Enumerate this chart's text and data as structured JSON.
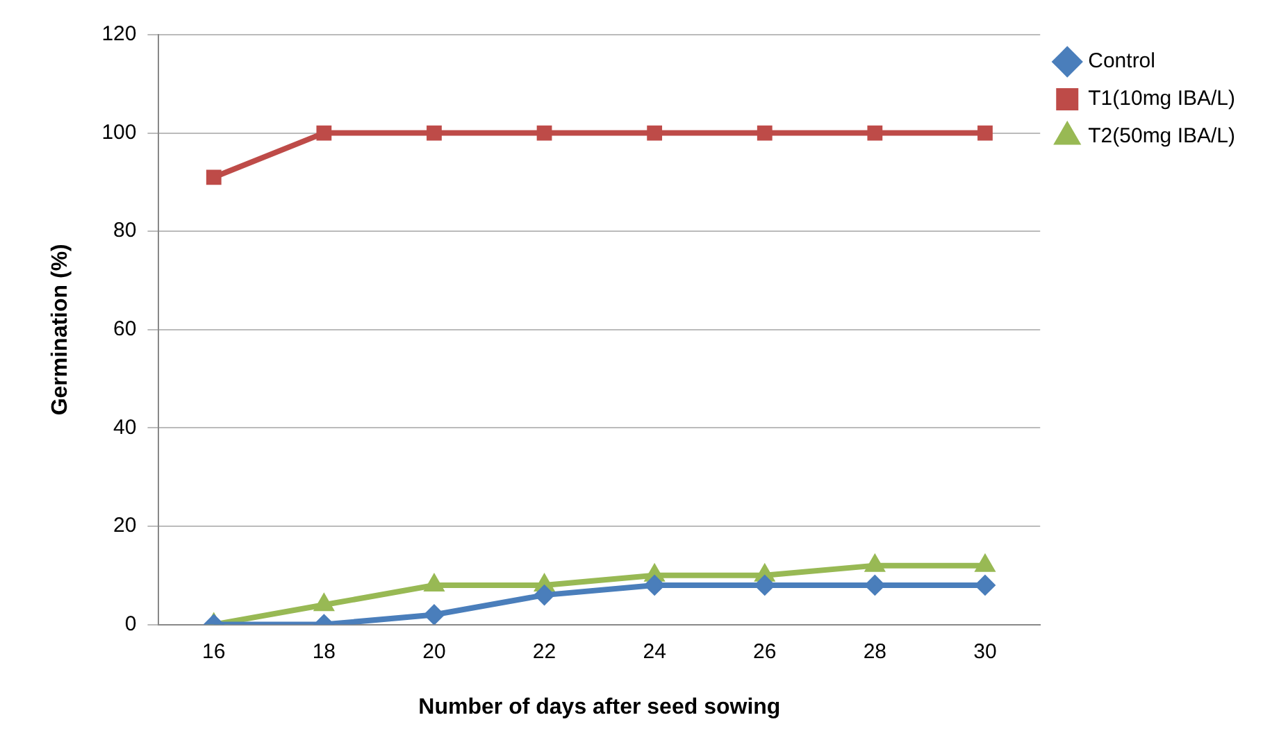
{
  "chart_data": {
    "type": "line",
    "xlabel": "Number of days after seed sowing",
    "ylabel": "Germination (%)",
    "categories": [
      "16",
      "18",
      "20",
      "22",
      "24",
      "26",
      "28",
      "30"
    ],
    "series": [
      {
        "name": "Control",
        "color": "#4a7ebb",
        "marker": "diamond",
        "values": [
          0,
          0,
          2,
          6,
          8,
          8,
          8,
          8
        ]
      },
      {
        "name": "T1(10mg IBA/L)",
        "color": "#be4b48",
        "marker": "square",
        "values": [
          91,
          100,
          100,
          100,
          100,
          100,
          100,
          100
        ]
      },
      {
        "name": "T2(50mg IBA/L)",
        "color": "#98b954",
        "marker": "triangle",
        "values": [
          0,
          4,
          8,
          8,
          10,
          10,
          12,
          12
        ]
      }
    ],
    "ylim": [
      0,
      120
    ],
    "yticks": [
      0,
      20,
      40,
      60,
      80,
      100,
      120
    ],
    "grid": "y",
    "legend": "right",
    "line_style": "solid"
  }
}
